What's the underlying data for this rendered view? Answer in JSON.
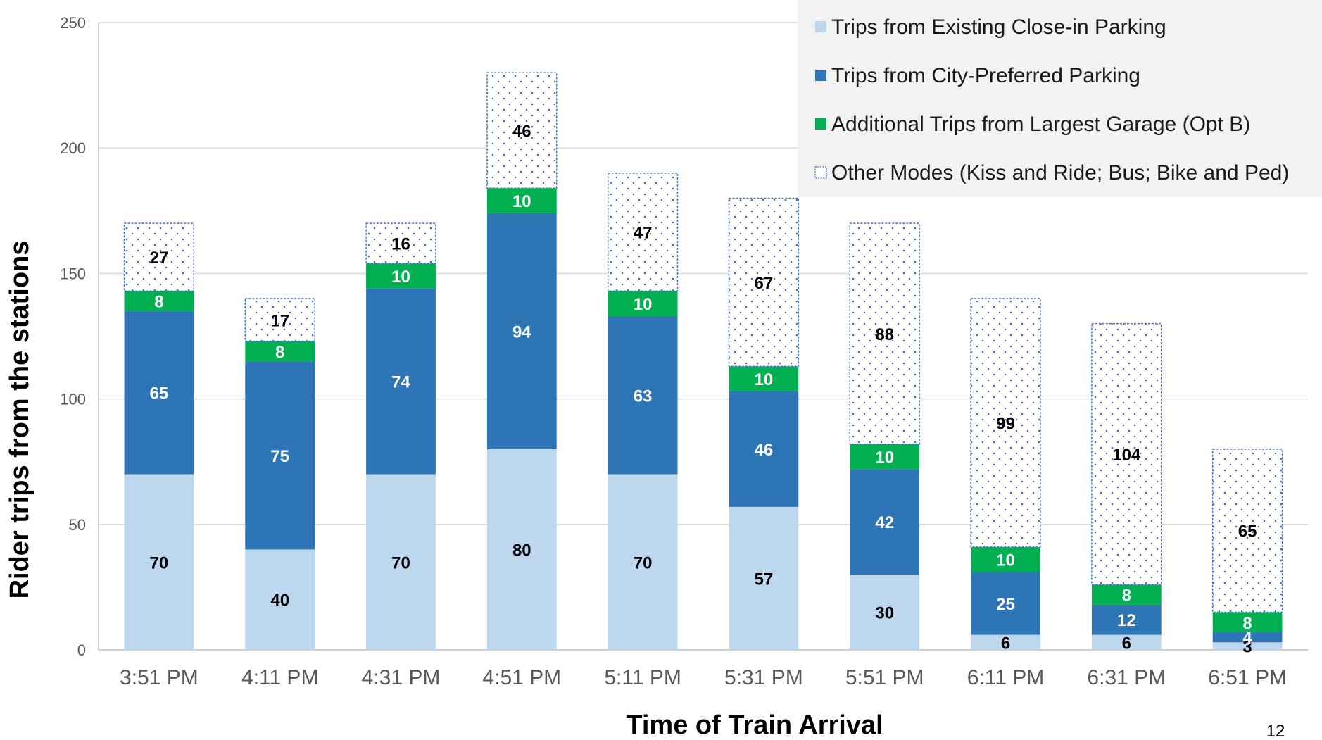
{
  "chart_data": {
    "type": "bar",
    "stacked": true,
    "categories": [
      "3:51 PM",
      "4:11 PM",
      "4:31 PM",
      "4:51 PM",
      "5:11 PM",
      "5:31 PM",
      "5:51 PM",
      "6:11 PM",
      "6:31 PM",
      "6:51 PM"
    ],
    "series": [
      {
        "name": "Trips from Existing Close-in Parking",
        "values": [
          70,
          40,
          70,
          80,
          70,
          57,
          30,
          6,
          6,
          3
        ],
        "color": "#BDD7EE",
        "label_color": "#000000",
        "pattern": "solid"
      },
      {
        "name": "Trips from City-Preferred Parking",
        "values": [
          65,
          75,
          74,
          94,
          63,
          46,
          42,
          25,
          12,
          4
        ],
        "color": "#2E75B6",
        "label_color": "#FFFFFF",
        "pattern": "solid"
      },
      {
        "name": "Additional Trips from Largest Garage (Opt B)",
        "values": [
          8,
          8,
          10,
          10,
          10,
          10,
          10,
          10,
          8,
          8
        ],
        "color": "#00B050",
        "label_color": "#FFFFFF",
        "pattern": "solid"
      },
      {
        "name": "Other Modes (Kiss and Ride; Bus; Bike and Ped)",
        "values": [
          27,
          17,
          16,
          46,
          47,
          67,
          88,
          99,
          104,
          65
        ],
        "color": "#4472C4",
        "label_color": "#000000",
        "pattern": "dotted"
      }
    ],
    "xlabel": "Time of Train Arrival",
    "ylabel": "Rider trips from the stations",
    "ylim": [
      0,
      250
    ],
    "yticks": [
      0,
      50,
      100,
      150,
      200,
      250
    ],
    "grid": true,
    "legend_position": "top-right"
  },
  "page_number": "12"
}
